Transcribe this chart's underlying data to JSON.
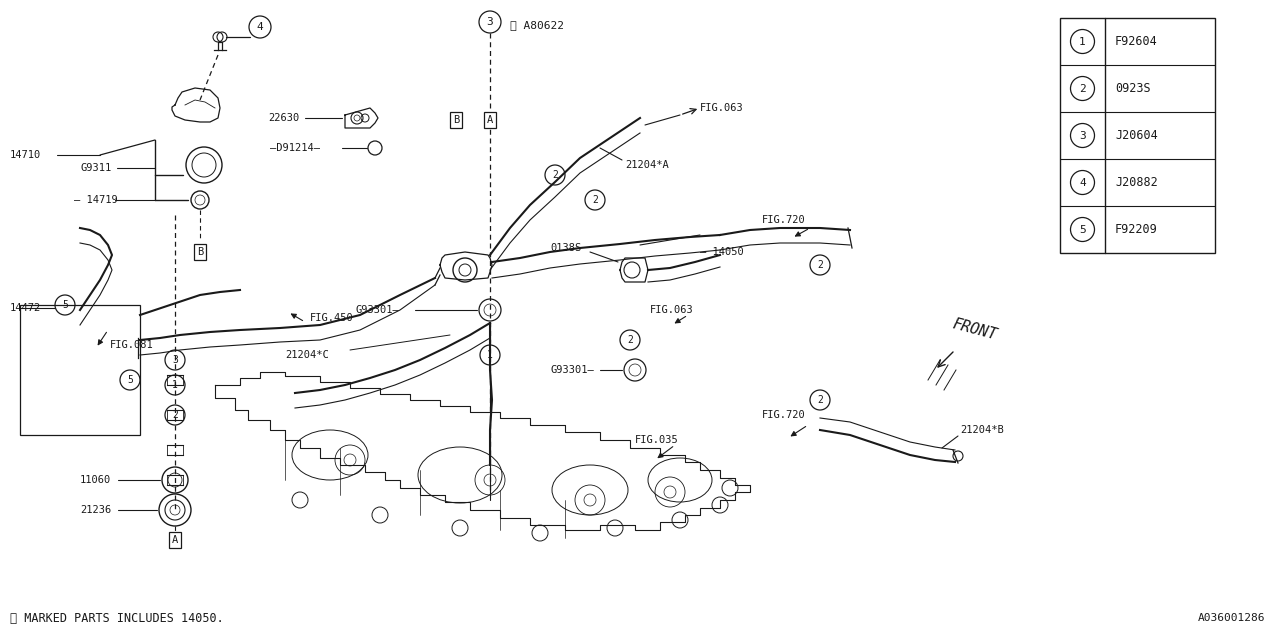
{
  "bg_color": "#ffffff",
  "line_color": "#1a1a1a",
  "legend_items": [
    {
      "num": "1",
      "code": "F92604"
    },
    {
      "num": "2",
      "code": "0923S"
    },
    {
      "num": "3",
      "code": "J20604"
    },
    {
      "num": "4",
      "code": "J20882"
    },
    {
      "num": "5",
      "code": "F92209"
    }
  ],
  "bottom_note": "※ MARKED PARTS INCLUDES 14050.",
  "bottom_right": "A036001286",
  "figsize": [
    12.8,
    6.4
  ],
  "dpi": 100
}
